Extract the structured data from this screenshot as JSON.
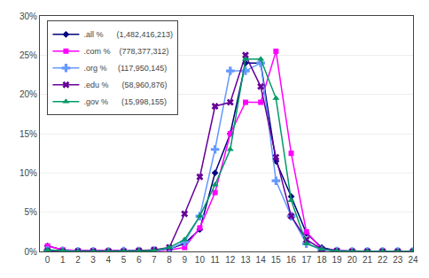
{
  "chart_data": {
    "type": "line",
    "x": [
      0,
      1,
      2,
      3,
      4,
      5,
      6,
      7,
      8,
      9,
      10,
      11,
      12,
      13,
      14,
      15,
      16,
      17,
      18,
      19,
      20,
      21,
      22,
      23,
      24
    ],
    "series": [
      {
        "name": ".all %      (1,482,416,213)",
        "color": "#000080",
        "marker": "diamond",
        "values": [
          0.7,
          0.2,
          0.1,
          0.1,
          0.05,
          0.05,
          0.1,
          0.1,
          0.3,
          1.0,
          2.8,
          10.0,
          15.0,
          24.0,
          24.0,
          11.5,
          7.0,
          2.3,
          0.5,
          0.1,
          0.05,
          0.0,
          0.0,
          0.0,
          0.0
        ]
      },
      {
        "name": ".com %    (778,377,312)",
        "color": "#FF00FF",
        "marker": "square",
        "values": [
          0.7,
          0.2,
          0.1,
          0.1,
          0.05,
          0.05,
          0.05,
          0.05,
          0.2,
          0.5,
          3.0,
          7.5,
          15.0,
          19.0,
          19.0,
          25.5,
          12.5,
          2.5,
          0.3,
          0.1,
          0.0,
          0.0,
          0.0,
          0.0,
          0.0
        ]
      },
      {
        "name": ".org %     (117,950,145)",
        "color": "#6699FF",
        "marker": "plus",
        "values": [
          0.1,
          0.05,
          0.0,
          0.0,
          0.0,
          0.05,
          0.05,
          0.1,
          0.3,
          1.2,
          4.5,
          13.0,
          23.0,
          23.0,
          24.0,
          9.0,
          4.5,
          1.0,
          0.2,
          0.05,
          0.0,
          0.0,
          0.0,
          0.0,
          0.0
        ]
      },
      {
        "name": ".edu %      (58,960,876)",
        "color": "#660099",
        "marker": "x",
        "values": [
          0.05,
          0.0,
          0.0,
          0.0,
          0.0,
          0.0,
          0.1,
          0.2,
          0.5,
          4.8,
          9.5,
          18.5,
          19.0,
          25.0,
          21.0,
          12.0,
          4.5,
          1.5,
          0.3,
          0.05,
          0.0,
          0.0,
          0.0,
          0.0,
          0.0
        ]
      },
      {
        "name": ".gov %      (15,998,155)",
        "color": "#009966",
        "marker": "triangle",
        "values": [
          0.2,
          0.1,
          0.0,
          0.0,
          0.0,
          0.0,
          0.05,
          0.1,
          0.5,
          1.5,
          4.5,
          8.5,
          13.0,
          24.5,
          24.5,
          19.5,
          6.5,
          1.0,
          0.3,
          0.05,
          0.0,
          0.0,
          0.0,
          0.0,
          0.0
        ]
      }
    ],
    "xlim": [
      -0.5,
      24
    ],
    "xticks": [
      0,
      1,
      2,
      3,
      4,
      5,
      6,
      7,
      8,
      9,
      10,
      11,
      12,
      13,
      14,
      15,
      16,
      17,
      18,
      19,
      20,
      21,
      22,
      23,
      24
    ],
    "ylim": [
      0,
      30
    ],
    "yticks": [
      {
        "value": 0,
        "label": "0%"
      },
      {
        "value": 5,
        "label": "5%"
      },
      {
        "value": 10,
        "label": "10%"
      },
      {
        "value": 15,
        "label": "15%"
      },
      {
        "value": 20,
        "label": "20%"
      },
      {
        "value": 25,
        "label": "25%"
      },
      {
        "value": 30,
        "label": "30%"
      }
    ],
    "grid": "y",
    "legend": "upper left"
  }
}
